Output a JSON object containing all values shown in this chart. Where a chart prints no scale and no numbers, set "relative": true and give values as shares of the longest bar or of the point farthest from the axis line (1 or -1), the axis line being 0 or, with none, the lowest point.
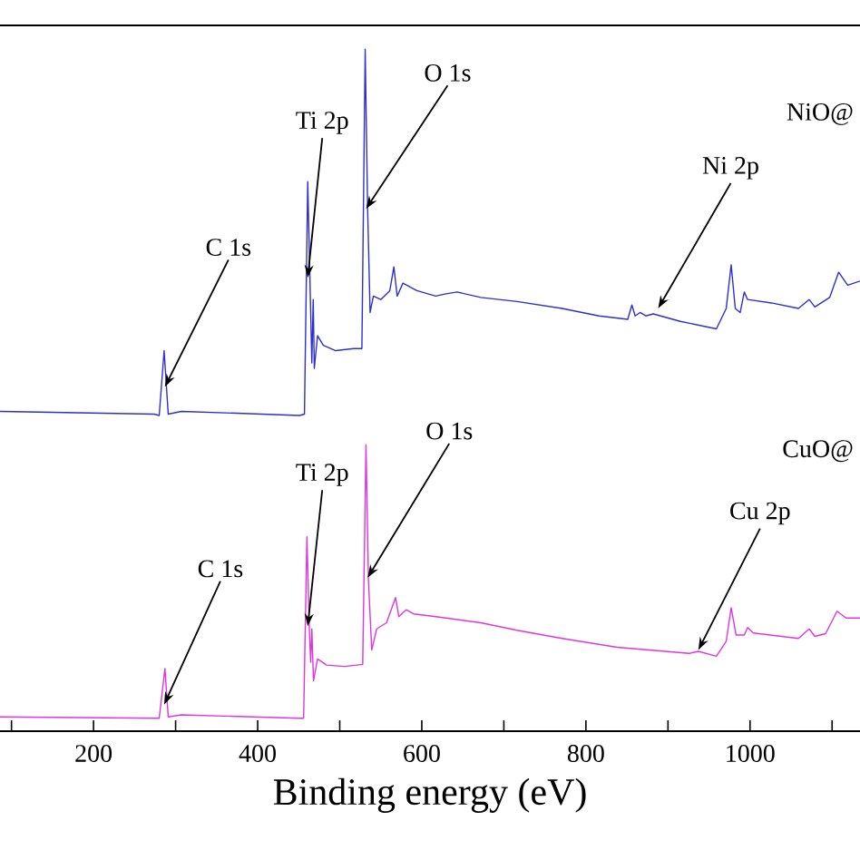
{
  "chart_data": {
    "type": "line",
    "relative": true,
    "xlabel": "Binding energy (eV)",
    "xlim": [
      86,
      1134
    ],
    "xticks": [
      {
        "value": 100,
        "label": null
      },
      200,
      {
        "value": 300,
        "label": null
      },
      400,
      {
        "value": 500,
        "label": null
      },
      600,
      {
        "value": 700,
        "label": null
      },
      800,
      {
        "value": 900,
        "label": null
      },
      1000,
      {
        "value": 1100,
        "label": null
      }
    ],
    "grid": false,
    "marker": "none",
    "line_style": "solid",
    "series": [
      {
        "color": "#2e2ed2",
        "x": [
          86,
          274,
          280,
          286,
          291,
          307,
          451,
          457,
          461,
          464,
          466,
          467.7,
          469,
          473,
          480,
          495,
          517,
          527,
          531,
          534,
          537,
          541,
          550,
          561,
          566,
          570,
          577,
          594,
          617,
          628,
          643,
          672,
          716,
          771,
          816,
          851,
          856,
          860,
          866,
          873,
          882,
          915,
          959,
          971,
          977,
          982,
          988,
          993,
          997,
          1026,
          1059,
          1072,
          1079,
          1097,
          1108,
          1119,
          1134
        ],
        "values": [
          0.469,
          0.465,
          0.463,
          0.558,
          0.465,
          0.469,
          0.463,
          0.465,
          0.806,
          0.646,
          0.54,
          0.633,
          0.532,
          0.58,
          0.566,
          0.558,
          0.561,
          0.561,
          1.0,
          0.766,
          0.614,
          0.638,
          0.633,
          0.646,
          0.681,
          0.638,
          0.657,
          0.646,
          0.638,
          0.641,
          0.644,
          0.636,
          0.63,
          0.62,
          0.609,
          0.604,
          0.625,
          0.609,
          0.614,
          0.609,
          0.612,
          0.601,
          0.59,
          0.62,
          0.684,
          0.62,
          0.614,
          0.644,
          0.633,
          0.628,
          0.62,
          0.633,
          0.622,
          0.636,
          0.673,
          0.654,
          0.66
        ]
      },
      {
        "color": "#e034e0",
        "x": [
          86,
          280,
          287,
          291,
          307,
          451,
          456,
          460,
          463,
          464.6,
          466,
          468,
          473,
          484,
          506,
          528,
          532,
          535,
          539,
          545,
          557,
          568,
          572,
          581,
          590,
          617,
          672,
          716,
          771,
          838,
          926,
          937,
          959,
          971,
          977,
          983,
          993,
          997,
          1004,
          1059,
          1072,
          1079,
          1092,
          1106,
          1117,
          1134
        ],
        "values": [
          0.021,
          0.019,
          0.092,
          0.021,
          0.024,
          0.019,
          0.019,
          0.285,
          0.15,
          0.101,
          0.15,
          0.074,
          0.106,
          0.097,
          0.095,
          0.098,
          0.42,
          0.221,
          0.119,
          0.15,
          0.159,
          0.196,
          0.168,
          0.178,
          0.172,
          0.168,
          0.159,
          0.148,
          0.136,
          0.123,
          0.114,
          0.117,
          0.11,
          0.132,
          0.181,
          0.141,
          0.141,
          0.152,
          0.144,
          0.136,
          0.15,
          0.139,
          0.143,
          0.176,
          0.166,
          0.166
        ]
      }
    ],
    "annotations": [
      {
        "text": "C 1s",
        "x": 287,
        "y": 0.505
      },
      {
        "text": "Ti 2p",
        "x": 461,
        "y": 0.665
      },
      {
        "text": "O 1s",
        "x": 532,
        "y": 0.766
      },
      {
        "text": "Ni 2p",
        "x": 888,
        "y": 0.62
      },
      {
        "text": "C 1s",
        "x": 286,
        "y": 0.039
      },
      {
        "text": "Ti 2p",
        "x": 461,
        "y": 0.154
      },
      {
        "text": "O 1s",
        "x": 534,
        "y": 0.225
      },
      {
        "text": "Cu 2p",
        "x": 937,
        "y": 0.119
      },
      "NiO@",
      "CuO@"
    ]
  }
}
